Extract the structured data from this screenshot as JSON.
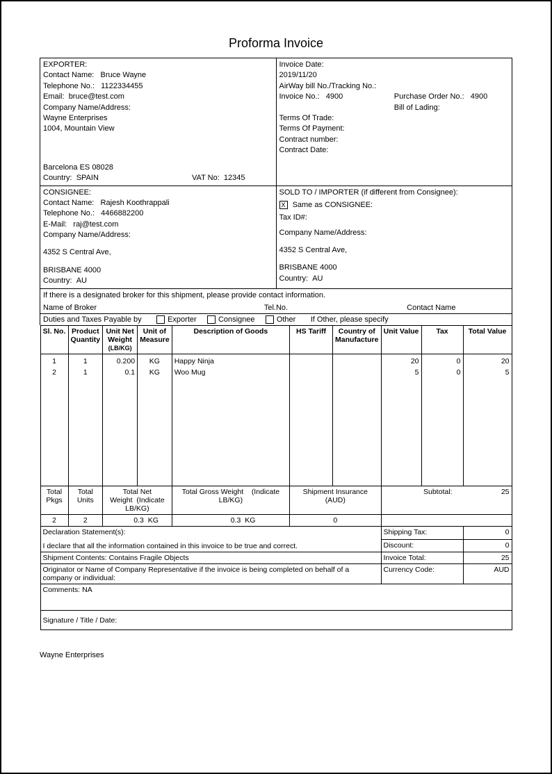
{
  "title": "Proforma Invoice",
  "exporter": {
    "heading": "EXPORTER:",
    "contact_label": "Contact Name:",
    "contact_name": "Bruce Wayne",
    "tel_label": "Telephone No.:",
    "tel": "1122334455",
    "email_label": "Email:",
    "email": "bruce@test.com",
    "company_label": "Company Name/Address:",
    "company": "Wayne Enterprises",
    "addr1": "1004, Mountain View",
    "city_line": "Barcelona  ES  08028",
    "country_label": "Country:",
    "country": "SPAIN",
    "vat_label": "VAT No:",
    "vat": "12345"
  },
  "invoice": {
    "date_label": "Invoice Date:",
    "date": "2019/11/20",
    "awb_label": "AirWay bill No./Tracking No.:",
    "inv_no_label": "Invoice No.:",
    "inv_no": "4900",
    "po_label": "Purchase Order No.:",
    "po": "4900",
    "bol_label": "Bill of Lading:",
    "tot_label": "Terms Of Trade:",
    "top_label": "Terms Of Payment:",
    "contract_no_label": "Contract number:",
    "contract_date_label": "Contract Date:"
  },
  "consignee": {
    "heading": "CONSIGNEE:",
    "contact_label": "Contact Name:",
    "contact_name": "Rajesh Koothrappali",
    "tel_label": "Telephone No.:",
    "tel": "4466882200",
    "email_label": "E-Mail:",
    "email": "raj@test.com",
    "company_label": "Company Name/Address:",
    "addr1": "4352 S Central Ave,",
    "city_line": "BRISBANE 4000",
    "country_label": "Country:",
    "country": "AU"
  },
  "soldto": {
    "heading": "SOLD TO / IMPORTER (if different from Consignee):",
    "same_as": "Same as CONSIGNEE:",
    "same_checked": "X",
    "tax_label": "Tax ID#:",
    "company_label": "Company Name/Address:",
    "addr1": "4352 S Central Ave,",
    "city_line": "BRISBANE 4000",
    "country_label": "Country:",
    "country": "AU"
  },
  "broker": {
    "line1": "If there is a designated broker for this shipment, please provide contact information.",
    "name_label": "Name of Broker",
    "tel_label": "Tel.No.",
    "contact_label": "Contact Name"
  },
  "duties": {
    "label": "Duties and Taxes Payable by",
    "exporter": "Exporter",
    "consignee": "Consignee",
    "other": "Other",
    "other_label": "If Other, please specify"
  },
  "columns": {
    "slno": "Sl. No.",
    "qty": "Product Quantity",
    "netw": "Unit Net Weight",
    "netw_sub": "(LB/KG)",
    "uom": "Unit of Measure",
    "desc": "Description of Goods",
    "hs": "HS Tariff",
    "com": "Country of Manufacture",
    "uval": "Unit Value",
    "tax": "Tax",
    "tval": "Total Value"
  },
  "items": [
    {
      "sl": "1",
      "qty": "1",
      "netw": "0.200",
      "uom": "KG",
      "desc": "Happy Ninja",
      "hs": "",
      "com": "",
      "uval": "20",
      "tax": "0",
      "tval": "20"
    },
    {
      "sl": "2",
      "qty": "1",
      "netw": "0.1",
      "uom": "KG",
      "desc": "Woo Mug",
      "hs": "",
      "com": "",
      "uval": "5",
      "tax": "0",
      "tval": "5"
    }
  ],
  "totals_hdr": {
    "pkgs": "Total Pkgs",
    "units": "Total Units",
    "netw": "Total Net Weight",
    "netw_ind": "(Indicate LB/KG)",
    "grossw": "Total Gross Weight",
    "grossw_ind": "(Indicate LB/KG)",
    "ship_ins": "Shipment Insurance (AUD)"
  },
  "totals_val": {
    "pkgs": "2",
    "units": "2",
    "netw": "0.3",
    "netw_u": "KG",
    "grossw": "0.3",
    "grossw_u": "KG",
    "ship_ins": "0"
  },
  "summary": {
    "subtotal_label": "Subtotal:",
    "subtotal": "25",
    "shiptax_label": "Shipping Tax:",
    "shiptax": "0",
    "discount_label": "Discount:",
    "discount": "0",
    "invtotal_label": "Invoice Total:",
    "invtotal": "25",
    "currency_label": "Currency Code:",
    "currency": "AUD"
  },
  "decl": {
    "heading": "Declaration Statement(s):",
    "text": "I declare that all the information contained in this invoice to be true and correct."
  },
  "shipment_contents_label": "Shipment Contents:",
  "shipment_contents": "Contains Fragile Objects",
  "originator": "Originator or Name of Company Representative if the invoice is being completed on behalf of a company or individual:",
  "comments_label": "Comments:",
  "comments": "NA",
  "signature": "Signature / Title / Date:",
  "footer_company": "Wayne Enterprises",
  "col_widths": {
    "slno": 40,
    "qty": 42,
    "netw": 50,
    "uom": 38,
    "desc": 150,
    "hs": 62,
    "com": 62,
    "uval": 58,
    "tax": 60,
    "tval": 70
  }
}
